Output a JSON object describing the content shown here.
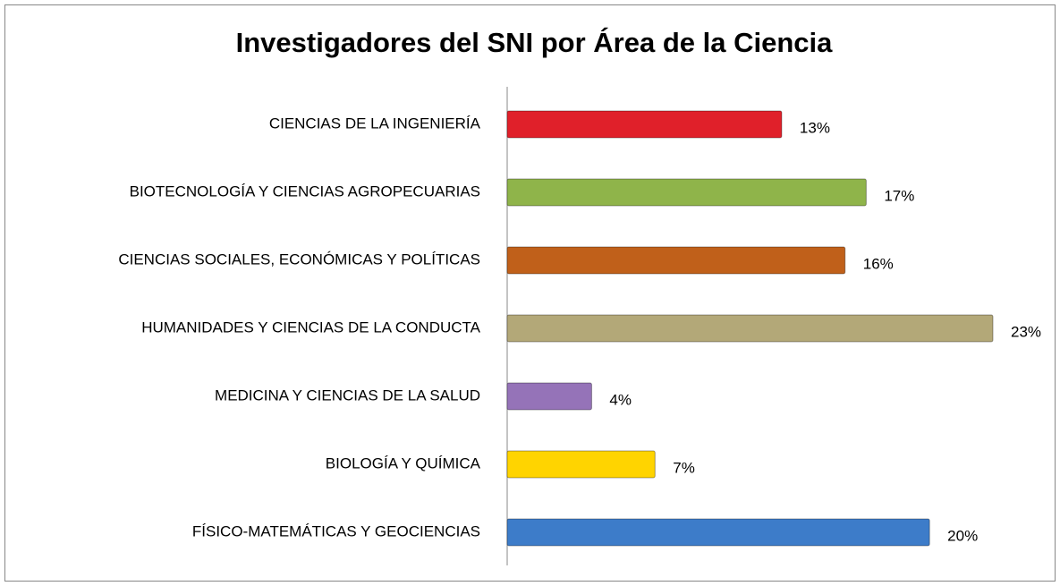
{
  "chart_data": {
    "type": "bar",
    "orientation": "horizontal",
    "title": "Investigadores del SNI por Área de la Ciencia",
    "categories": [
      "CIENCIAS DE LA INGENIERÍA",
      "BIOTECNOLOGÍA Y CIENCIAS AGROPECUARIAS",
      "CIENCIAS SOCIALES, ECONÓMICAS Y POLÍTICAS",
      "HUMANIDADES Y CIENCIAS DE LA CONDUCTA",
      "MEDICINA Y CIENCIAS DE LA SALUD",
      "BIOLOGÍA Y QUÍMICA",
      "FÍSICO-MATEMÁTICAS Y GEOCIENCIAS"
    ],
    "values": [
      13,
      17,
      16,
      23,
      4,
      7,
      20
    ],
    "value_labels": [
      "13%",
      "17%",
      "16%",
      "23%",
      "4%",
      "7%",
      "20%"
    ],
    "colors": [
      "#e0202a",
      "#8fb44a",
      "#c0601a",
      "#b3a878",
      "#9573b8",
      "#ffd400",
      "#3d7cc9"
    ]
  }
}
